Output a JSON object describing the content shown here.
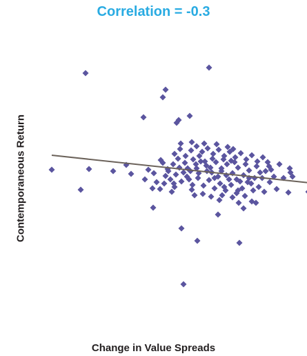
{
  "chart_data": {
    "type": "scatter",
    "title": "Correlation = -0.3",
    "xlabel": "Change in Value Spreads",
    "ylabel": "Contemporaneous Return",
    "xlim": [
      0,
      373
    ],
    "ylim": [
      -318,
      0
    ],
    "grid": false,
    "legend": "none",
    "trendline": {
      "x": [
        0,
        373
      ],
      "y": [
        -137,
        -177
      ]
    },
    "points": [
      {
        "x": 49,
        "y": -18
      },
      {
        "x": 228,
        "y": -10
      },
      {
        "x": 165,
        "y": -42
      },
      {
        "x": 161,
        "y": -53
      },
      {
        "x": 133,
        "y": -82
      },
      {
        "x": 200,
        "y": -80
      },
      {
        "x": 184,
        "y": -86
      },
      {
        "x": 181,
        "y": -90
      },
      {
        "x": 0,
        "y": -158
      },
      {
        "x": 54,
        "y": -157
      },
      {
        "x": 89,
        "y": -160
      },
      {
        "x": 42,
        "y": -187
      },
      {
        "x": 372,
        "y": -190
      },
      {
        "x": 343,
        "y": -191
      },
      {
        "x": 315,
        "y": -153
      },
      {
        "x": 318,
        "y": -158
      },
      {
        "x": 345,
        "y": -156
      },
      {
        "x": 346,
        "y": -162
      },
      {
        "x": 349,
        "y": -168
      },
      {
        "x": 108,
        "y": -151
      },
      {
        "x": 115,
        "y": -164
      },
      {
        "x": 140,
        "y": -158
      },
      {
        "x": 135,
        "y": -172
      },
      {
        "x": 146,
        "y": -185
      },
      {
        "x": 147,
        "y": -213
      },
      {
        "x": 188,
        "y": -243
      },
      {
        "x": 211,
        "y": -261
      },
      {
        "x": 191,
        "y": -324
      },
      {
        "x": 272,
        "y": -264
      },
      {
        "x": 241,
        "y": -223
      },
      {
        "x": 243,
        "y": -202
      },
      {
        "x": 271,
        "y": -206
      },
      {
        "x": 270,
        "y": -188
      },
      {
        "x": 290,
        "y": -204
      },
      {
        "x": 296,
        "y": -206
      },
      {
        "x": 278,
        "y": -214
      },
      {
        "x": 178,
        "y": -183
      },
      {
        "x": 165,
        "y": -167
      },
      {
        "x": 158,
        "y": -144
      },
      {
        "x": 168,
        "y": -157
      },
      {
        "x": 176,
        "y": -150
      },
      {
        "x": 185,
        "y": -155
      },
      {
        "x": 193,
        "y": -148
      },
      {
        "x": 201,
        "y": -160
      },
      {
        "x": 209,
        "y": -150
      },
      {
        "x": 214,
        "y": -138
      },
      {
        "x": 222,
        "y": -146
      },
      {
        "x": 230,
        "y": -155
      },
      {
        "x": 238,
        "y": -147
      },
      {
        "x": 246,
        "y": -160
      },
      {
        "x": 254,
        "y": -150
      },
      {
        "x": 262,
        "y": -163
      },
      {
        "x": 270,
        "y": -155
      },
      {
        "x": 278,
        "y": -166
      },
      {
        "x": 286,
        "y": -159
      },
      {
        "x": 294,
        "y": -170
      },
      {
        "x": 302,
        "y": -162
      },
      {
        "x": 172,
        "y": -172
      },
      {
        "x": 180,
        "y": -165
      },
      {
        "x": 188,
        "y": -175
      },
      {
        "x": 196,
        "y": -168
      },
      {
        "x": 204,
        "y": -180
      },
      {
        "x": 212,
        "y": -170
      },
      {
        "x": 220,
        "y": -181
      },
      {
        "x": 228,
        "y": -173
      },
      {
        "x": 236,
        "y": -185
      },
      {
        "x": 244,
        "y": -178
      },
      {
        "x": 252,
        "y": -188
      },
      {
        "x": 260,
        "y": -180
      },
      {
        "x": 268,
        "y": -192
      },
      {
        "x": 276,
        "y": -185
      },
      {
        "x": 284,
        "y": -176
      },
      {
        "x": 292,
        "y": -188
      },
      {
        "x": 178,
        "y": -135
      },
      {
        "x": 186,
        "y": -128
      },
      {
        "x": 194,
        "y": -138
      },
      {
        "x": 202,
        "y": -130
      },
      {
        "x": 210,
        "y": -124
      },
      {
        "x": 218,
        "y": -132
      },
      {
        "x": 226,
        "y": -127
      },
      {
        "x": 234,
        "y": -135
      },
      {
        "x": 242,
        "y": -129
      },
      {
        "x": 250,
        "y": -138
      },
      {
        "x": 258,
        "y": -132
      },
      {
        "x": 266,
        "y": -140
      },
      {
        "x": 274,
        "y": -134
      },
      {
        "x": 282,
        "y": -143
      },
      {
        "x": 290,
        "y": -137
      },
      {
        "x": 298,
        "y": -146
      },
      {
        "x": 306,
        "y": -140
      },
      {
        "x": 161,
        "y": -148
      },
      {
        "x": 169,
        "y": -160
      },
      {
        "x": 183,
        "y": -142
      },
      {
        "x": 197,
        "y": -156
      },
      {
        "x": 205,
        "y": -143
      },
      {
        "x": 213,
        "y": -163
      },
      {
        "x": 225,
        "y": -160
      },
      {
        "x": 233,
        "y": -142
      },
      {
        "x": 241,
        "y": -168
      },
      {
        "x": 249,
        "y": -143
      },
      {
        "x": 257,
        "y": -172
      },
      {
        "x": 265,
        "y": -147
      },
      {
        "x": 273,
        "y": -175
      },
      {
        "x": 281,
        "y": -150
      },
      {
        "x": 289,
        "y": -178
      },
      {
        "x": 297,
        "y": -153
      },
      {
        "x": 305,
        "y": -170
      },
      {
        "x": 313,
        "y": -147
      },
      {
        "x": 148,
        "y": -163
      },
      {
        "x": 152,
        "y": -176
      },
      {
        "x": 157,
        "y": -186
      },
      {
        "x": 163,
        "y": -178
      },
      {
        "x": 174,
        "y": -190
      },
      {
        "x": 207,
        "y": -195
      },
      {
        "x": 219,
        "y": -193
      },
      {
        "x": 231,
        "y": -197
      },
      {
        "x": 247,
        "y": -195
      },
      {
        "x": 262,
        "y": -198
      },
      {
        "x": 280,
        "y": -196
      },
      {
        "x": 300,
        "y": -183
      },
      {
        "x": 308,
        "y": -190
      },
      {
        "x": 316,
        "y": -176
      },
      {
        "x": 322,
        "y": -168
      },
      {
        "x": 326,
        "y": -186
      },
      {
        "x": 330,
        "y": -150
      },
      {
        "x": 336,
        "y": -170
      },
      {
        "x": 310,
        "y": -160
      },
      {
        "x": 187,
        "y": -120
      },
      {
        "x": 203,
        "y": -118
      },
      {
        "x": 221,
        "y": -120
      },
      {
        "x": 239,
        "y": -121
      },
      {
        "x": 255,
        "y": -125
      },
      {
        "x": 263,
        "y": -128
      },
      {
        "x": 216,
        "y": -146
      },
      {
        "x": 224,
        "y": -152
      },
      {
        "x": 232,
        "y": -162
      },
      {
        "x": 246,
        "y": -156
      },
      {
        "x": 253,
        "y": -166
      },
      {
        "x": 260,
        "y": -145
      },
      {
        "x": 268,
        "y": -172
      },
      {
        "x": 236,
        "y": -170
      },
      {
        "x": 199,
        "y": -172
      },
      {
        "x": 191,
        "y": -162
      },
      {
        "x": 210,
        "y": -156
      },
      {
        "x": 177,
        "y": -178
      },
      {
        "x": 203,
        "y": -187
      },
      {
        "x": 250,
        "y": -183
      },
      {
        "x": 286,
        "y": -170
      }
    ]
  }
}
